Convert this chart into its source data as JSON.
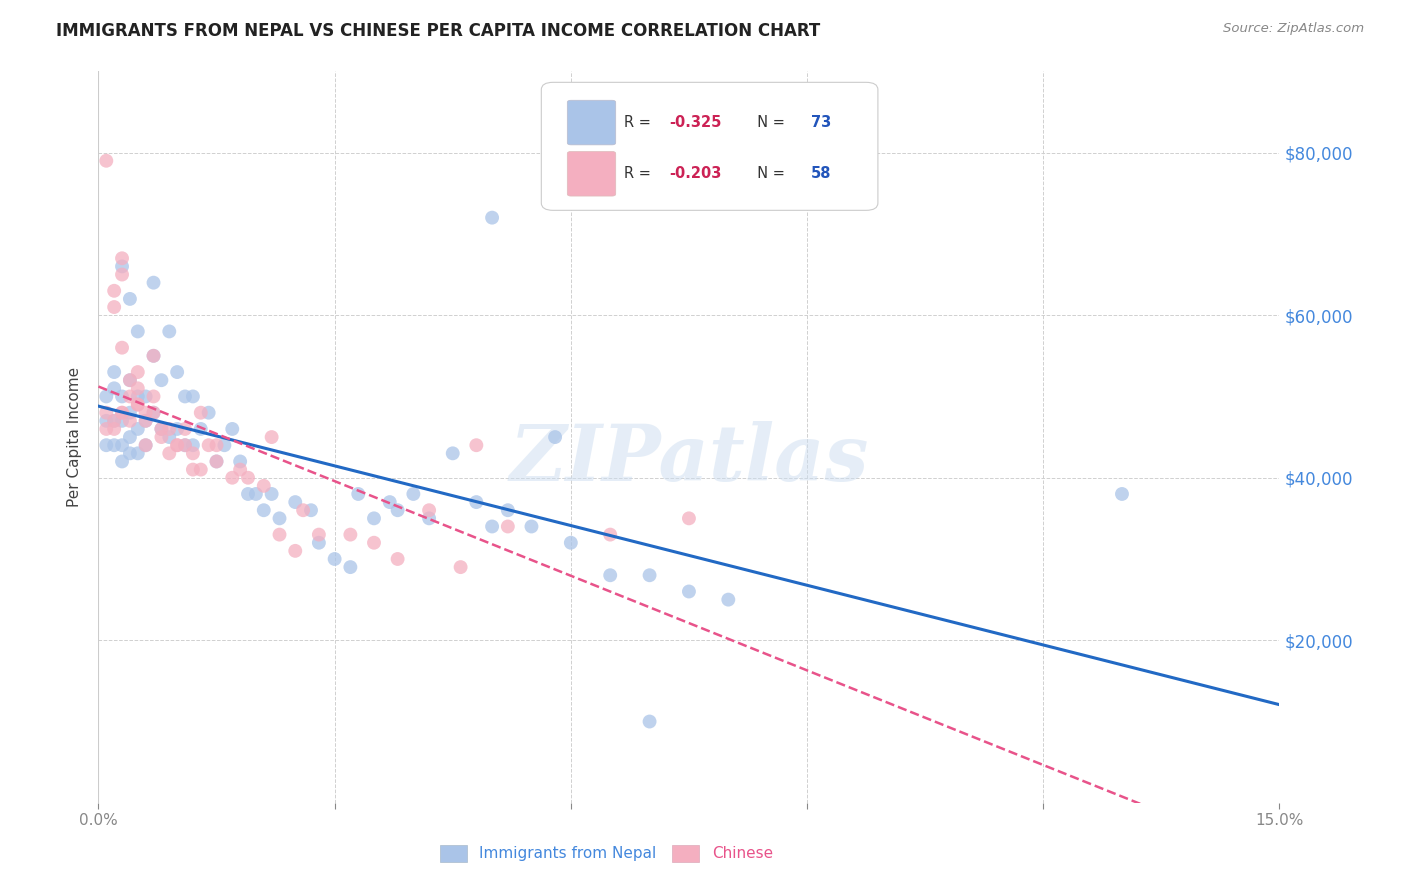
{
  "title": "IMMIGRANTS FROM NEPAL VS CHINESE PER CAPITA INCOME CORRELATION CHART",
  "source": "Source: ZipAtlas.com",
  "ylabel": "Per Capita Income",
  "ytick_labels": [
    "$20,000",
    "$40,000",
    "$60,000",
    "$80,000"
  ],
  "ytick_values": [
    20000,
    40000,
    60000,
    80000
  ],
  "xlim": [
    0.0,
    0.15
  ],
  "ylim": [
    0,
    90000
  ],
  "bottom_legend_1": "Immigrants from Nepal",
  "bottom_legend_2": "Chinese",
  "nepal_color": "#aac4e8",
  "chinese_color": "#f4afc0",
  "nepal_line_color": "#2269c4",
  "chinese_line_color": "#e8538a",
  "watermark": "ZIPatlas",
  "r_nepal": "-0.325",
  "n_nepal": "73",
  "r_chinese": "-0.203",
  "n_chinese": "58",
  "nepal_x": [
    0.001,
    0.001,
    0.001,
    0.002,
    0.002,
    0.002,
    0.002,
    0.003,
    0.003,
    0.003,
    0.003,
    0.003,
    0.004,
    0.004,
    0.004,
    0.004,
    0.004,
    0.005,
    0.005,
    0.005,
    0.005,
    0.006,
    0.006,
    0.006,
    0.007,
    0.007,
    0.007,
    0.008,
    0.008,
    0.009,
    0.009,
    0.01,
    0.01,
    0.011,
    0.011,
    0.012,
    0.012,
    0.013,
    0.014,
    0.015,
    0.016,
    0.017,
    0.018,
    0.019,
    0.02,
    0.021,
    0.022,
    0.023,
    0.025,
    0.027,
    0.028,
    0.03,
    0.032,
    0.033,
    0.035,
    0.037,
    0.038,
    0.04,
    0.042,
    0.045,
    0.048,
    0.05,
    0.052,
    0.055,
    0.058,
    0.06,
    0.065,
    0.07,
    0.075,
    0.08,
    0.05,
    0.13,
    0.07
  ],
  "nepal_y": [
    47000,
    50000,
    44000,
    51000,
    47000,
    53000,
    44000,
    50000,
    47000,
    44000,
    66000,
    42000,
    52000,
    48000,
    45000,
    43000,
    62000,
    50000,
    46000,
    43000,
    58000,
    50000,
    47000,
    44000,
    55000,
    48000,
    64000,
    52000,
    46000,
    58000,
    45000,
    53000,
    46000,
    50000,
    44000,
    50000,
    44000,
    46000,
    48000,
    42000,
    44000,
    46000,
    42000,
    38000,
    38000,
    36000,
    38000,
    35000,
    37000,
    36000,
    32000,
    30000,
    29000,
    38000,
    35000,
    37000,
    36000,
    38000,
    35000,
    43000,
    37000,
    34000,
    36000,
    34000,
    45000,
    32000,
    28000,
    28000,
    26000,
    25000,
    72000,
    38000,
    10000
  ],
  "chinese_x": [
    0.001,
    0.001,
    0.002,
    0.002,
    0.002,
    0.003,
    0.003,
    0.003,
    0.003,
    0.004,
    0.004,
    0.005,
    0.005,
    0.005,
    0.006,
    0.006,
    0.007,
    0.007,
    0.008,
    0.009,
    0.01,
    0.011,
    0.012,
    0.013,
    0.014,
    0.015,
    0.017,
    0.019,
    0.021,
    0.023,
    0.025,
    0.028,
    0.032,
    0.035,
    0.038,
    0.042,
    0.046,
    0.048,
    0.052,
    0.065,
    0.001,
    0.002,
    0.003,
    0.004,
    0.005,
    0.006,
    0.007,
    0.008,
    0.009,
    0.01,
    0.011,
    0.012,
    0.013,
    0.015,
    0.018,
    0.022,
    0.026,
    0.075
  ],
  "chinese_y": [
    79000,
    46000,
    47000,
    63000,
    61000,
    67000,
    65000,
    56000,
    48000,
    52000,
    50000,
    53000,
    51000,
    49000,
    48000,
    47000,
    55000,
    50000,
    46000,
    46000,
    44000,
    44000,
    43000,
    48000,
    44000,
    42000,
    40000,
    40000,
    39000,
    33000,
    31000,
    33000,
    33000,
    32000,
    30000,
    36000,
    29000,
    44000,
    34000,
    33000,
    48000,
    46000,
    48000,
    47000,
    49000,
    44000,
    48000,
    45000,
    43000,
    44000,
    46000,
    41000,
    41000,
    44000,
    41000,
    45000,
    36000,
    35000
  ]
}
